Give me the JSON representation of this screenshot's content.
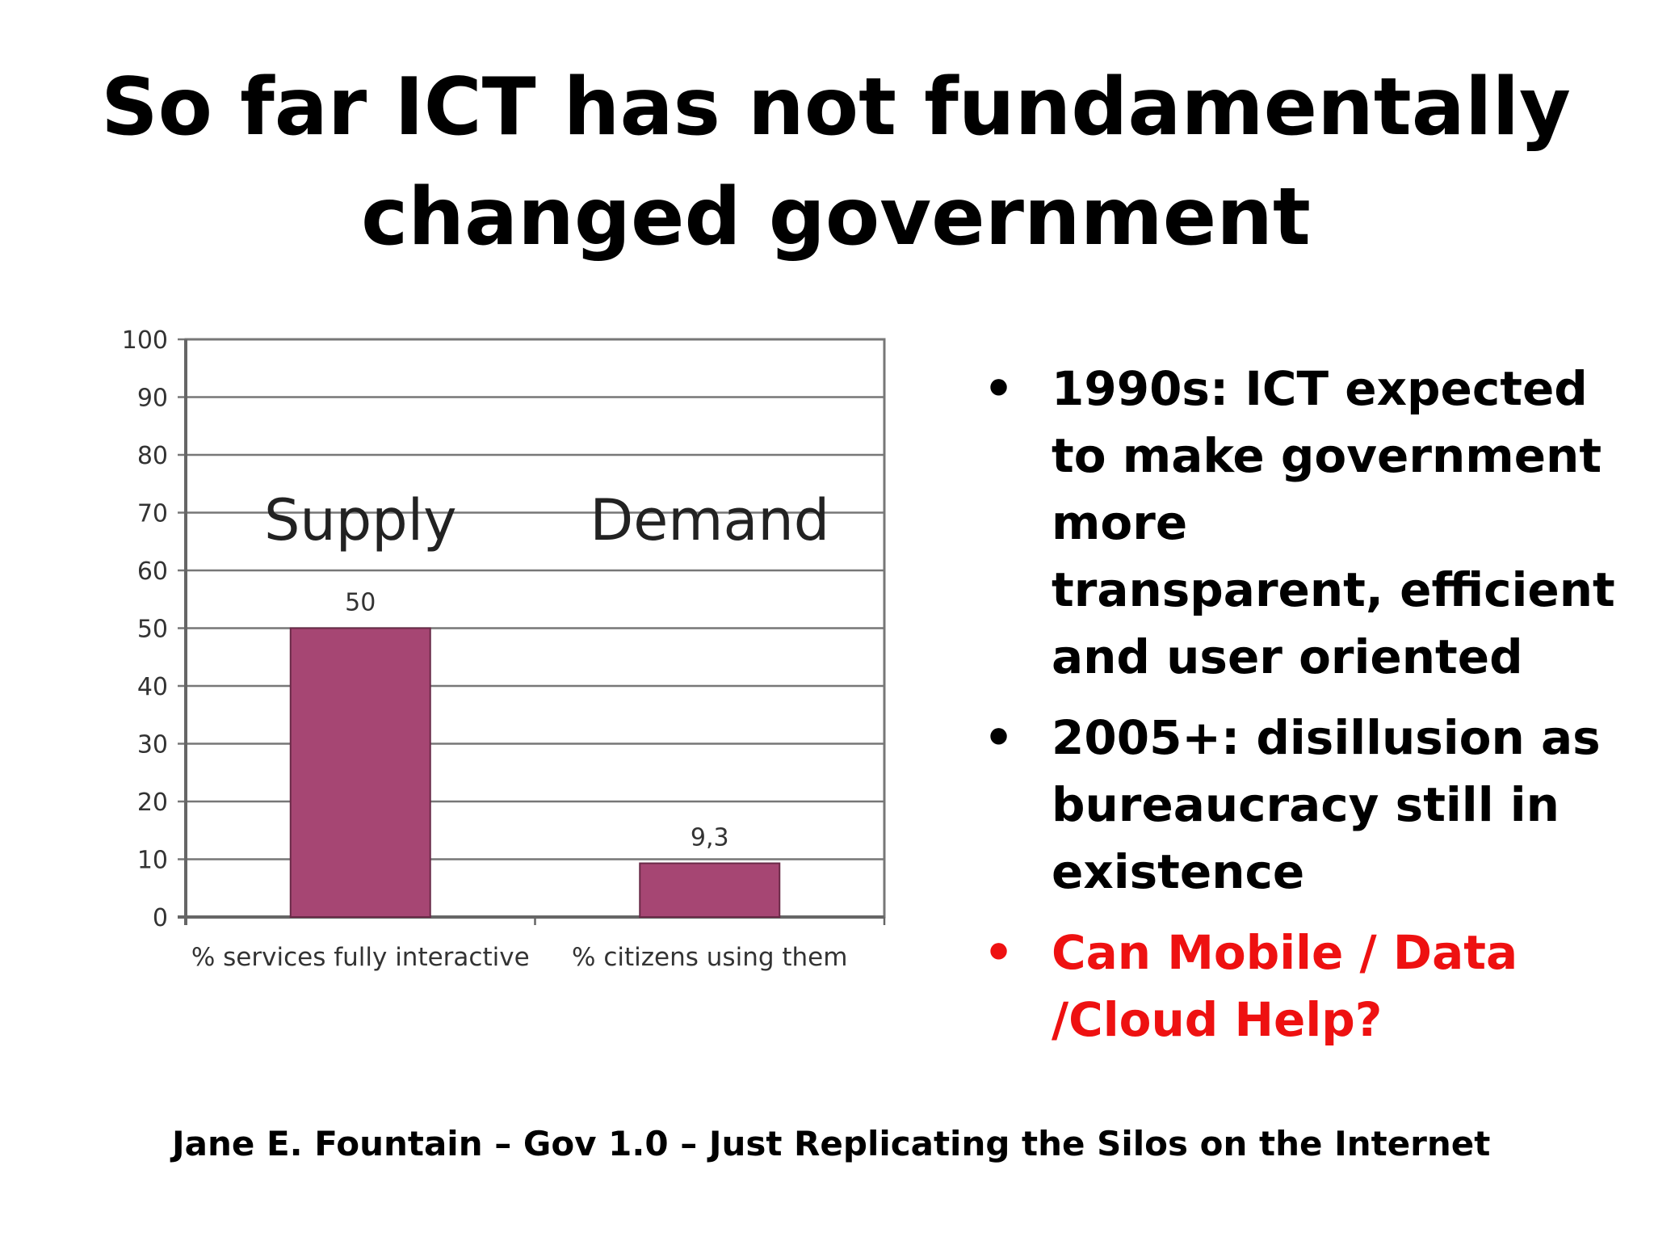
{
  "slide": {
    "title_line1": "So far ICT has not fundamentally",
    "title_line2": "changed government",
    "bullets": [
      {
        "text_lines": [
          "1990s: ICT expected",
          "to make government",
          "more",
          "transparent, efficient",
          "and user oriented"
        ],
        "color": "#000000"
      },
      {
        "text_lines": [
          "2005+: disillusion as",
          "bureaucracy still in",
          "existence"
        ],
        "color": "#000000"
      },
      {
        "text_lines": [
          "Can Mobile / Data",
          "/Cloud Help?"
        ],
        "color": "#ee1111"
      }
    ],
    "bullet_symbol": "•",
    "footer": "Jane E. Fountain – Gov 1.0 – Just Replicating the Silos on the Internet"
  },
  "chart_data": {
    "type": "bar",
    "categories": [
      "% services fully interactive",
      "% citizens using them"
    ],
    "values": [
      50,
      9.3
    ],
    "data_labels": [
      "50",
      "9,3"
    ],
    "annotations": [
      "Supply",
      "Demand"
    ],
    "ylim": [
      0,
      100
    ],
    "yticks": [
      "0",
      "10",
      "20",
      "30",
      "40",
      "50",
      "60",
      "70",
      "80",
      "90",
      "100"
    ],
    "grid": true,
    "bar_color": "#a64673"
  }
}
